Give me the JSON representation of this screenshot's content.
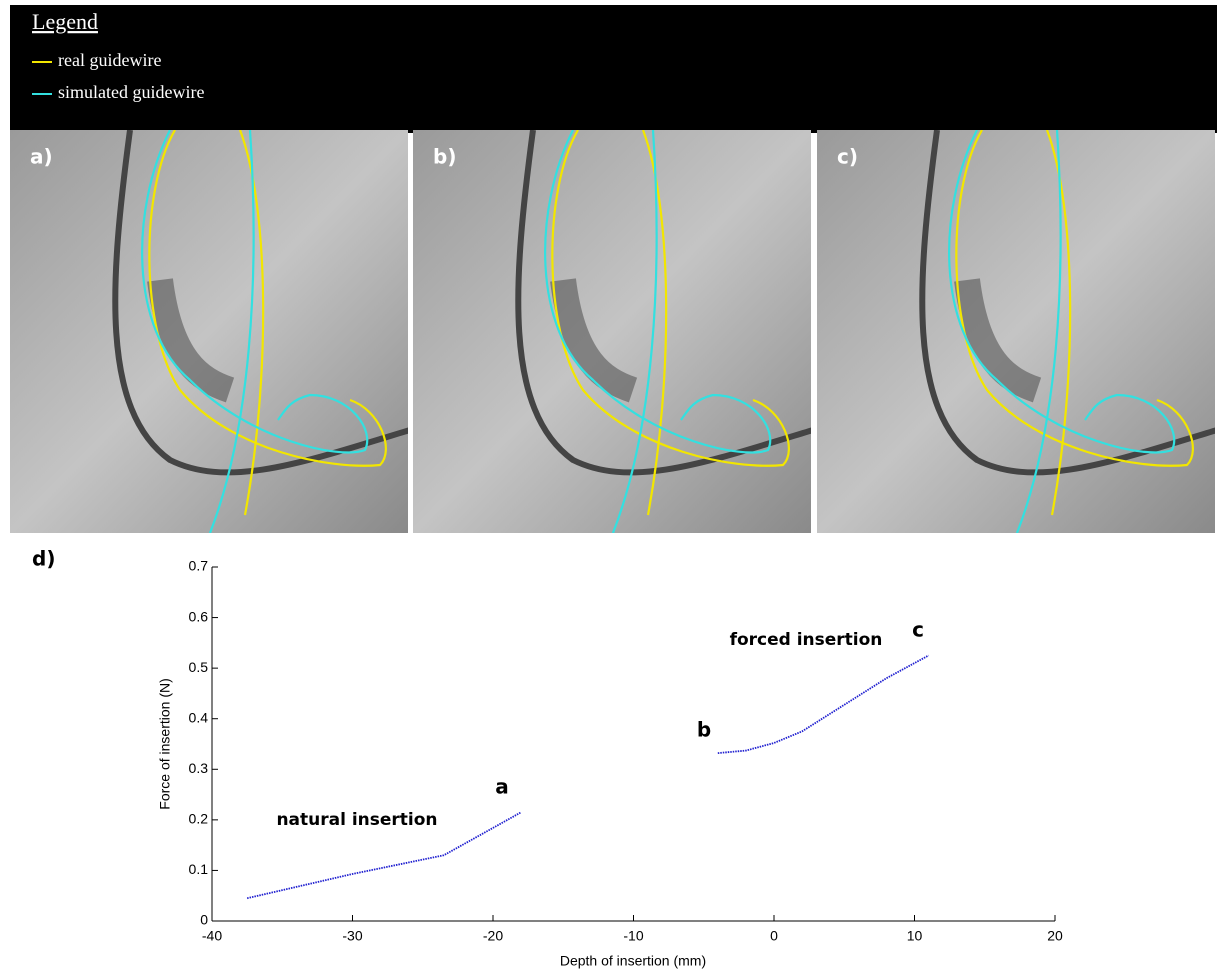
{
  "legend": {
    "title": "Legend",
    "items": [
      {
        "label": "real guidewire",
        "color": "#f2e600"
      },
      {
        "label": "simulated guidewire",
        "color": "#33e0e0"
      }
    ]
  },
  "panels": [
    "a)",
    "b)",
    "c)"
  ],
  "chart_label": "d)",
  "chart_data": {
    "type": "line",
    "xlabel": "Depth of insertion (mm)",
    "ylabel": "Force of insertion (N)",
    "series": [
      {
        "name": "natural insertion",
        "color": "#2020d0",
        "x": [
          -37.5,
          -30,
          -23.5,
          -18
        ],
        "values": [
          0.045,
          0.093,
          0.13,
          0.215
        ]
      },
      {
        "name": "forced insertion",
        "color": "#2020d0",
        "x": [
          -4,
          -2,
          0,
          2,
          4,
          6,
          8,
          11
        ],
        "values": [
          0.332,
          0.337,
          0.352,
          0.375,
          0.41,
          0.445,
          0.48,
          0.525
        ]
      }
    ],
    "annotations": [
      "a",
      "b",
      "c"
    ],
    "xlim": [
      -40,
      20
    ],
    "xticks": [
      -40,
      -30,
      -20,
      -10,
      0,
      10,
      20
    ],
    "ylim": [
      0,
      0.7
    ],
    "yticks": [
      0,
      0.1,
      0.2,
      0.3,
      0.4,
      0.5,
      0.6,
      0.7
    ]
  }
}
